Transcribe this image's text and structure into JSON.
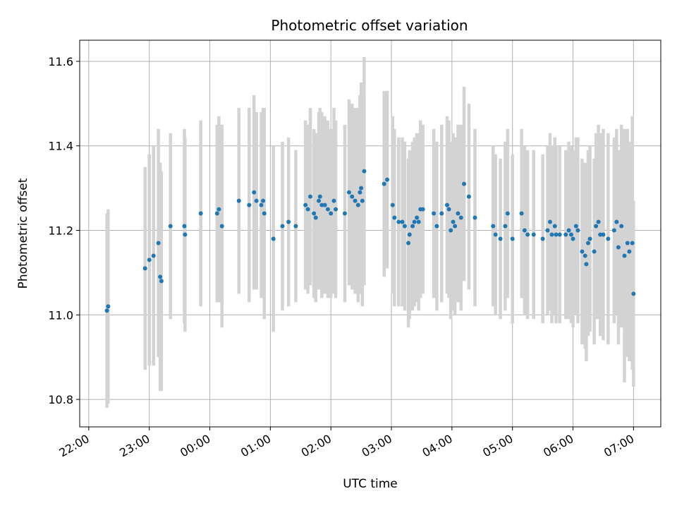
{
  "chart_data": {
    "type": "scatter",
    "title": "Photometric offset variation",
    "xlabel": "UTC time",
    "ylabel": "Photometric offset",
    "grid": true,
    "xlim": [
      -0.15,
      9.45
    ],
    "ylim": [
      10.735,
      11.65
    ],
    "x_ticks": [
      {
        "value": 0,
        "label": "22:00"
      },
      {
        "value": 1,
        "label": "23:00"
      },
      {
        "value": 2,
        "label": "00:00"
      },
      {
        "value": 3,
        "label": "01:00"
      },
      {
        "value": 4,
        "label": "02:00"
      },
      {
        "value": 5,
        "label": "03:00"
      },
      {
        "value": 6,
        "label": "04:00"
      },
      {
        "value": 7,
        "label": "05:00"
      },
      {
        "value": 8,
        "label": "06:00"
      },
      {
        "value": 9,
        "label": "07:00"
      }
    ],
    "y_ticks": [
      {
        "value": 10.8,
        "label": "10.8"
      },
      {
        "value": 11.0,
        "label": "11.0"
      },
      {
        "value": 11.2,
        "label": "11.2"
      },
      {
        "value": 11.4,
        "label": "11.4"
      },
      {
        "value": 11.6,
        "label": "11.6"
      }
    ],
    "point_color": "#1f77b4",
    "errorbar_color": "#d3d3d3",
    "points": [
      [
        0.3,
        11.01,
        0.23
      ],
      [
        0.32,
        11.02,
        0.23
      ],
      [
        0.93,
        11.11,
        0.24
      ],
      [
        1.0,
        11.13,
        0.25
      ],
      [
        1.07,
        11.14,
        0.26
      ],
      [
        1.15,
        11.17,
        0.27
      ],
      [
        1.18,
        11.09,
        0.27
      ],
      [
        1.2,
        11.08,
        0.26
      ],
      [
        1.35,
        11.21,
        0.22
      ],
      [
        1.58,
        11.21,
        0.23
      ],
      [
        1.59,
        11.19,
        0.23
      ],
      [
        1.85,
        11.24,
        0.22
      ],
      [
        2.12,
        11.24,
        0.21
      ],
      [
        2.15,
        11.25,
        0.22
      ],
      [
        2.2,
        11.21,
        0.24
      ],
      [
        2.48,
        11.27,
        0.22
      ],
      [
        2.65,
        11.26,
        0.23
      ],
      [
        2.73,
        11.29,
        0.23
      ],
      [
        2.77,
        11.27,
        0.21
      ],
      [
        2.85,
        11.26,
        0.22
      ],
      [
        2.88,
        11.27,
        0.22
      ],
      [
        2.9,
        11.24,
        0.25
      ],
      [
        3.05,
        11.18,
        0.22
      ],
      [
        3.2,
        11.21,
        0.2
      ],
      [
        3.3,
        11.22,
        0.2
      ],
      [
        3.42,
        11.21,
        0.18
      ],
      [
        3.58,
        11.26,
        0.2
      ],
      [
        3.62,
        11.25,
        0.2
      ],
      [
        3.66,
        11.28,
        0.21
      ],
      [
        3.72,
        11.24,
        0.2
      ],
      [
        3.75,
        11.23,
        0.2
      ],
      [
        3.8,
        11.27,
        0.21
      ],
      [
        3.82,
        11.28,
        0.21
      ],
      [
        3.85,
        11.26,
        0.22
      ],
      [
        3.9,
        11.26,
        0.21
      ],
      [
        3.95,
        11.25,
        0.21
      ],
      [
        4.0,
        11.24,
        0.2
      ],
      [
        4.05,
        11.27,
        0.22
      ],
      [
        4.08,
        11.25,
        0.21
      ],
      [
        4.23,
        11.24,
        0.21
      ],
      [
        4.3,
        11.29,
        0.22
      ],
      [
        4.35,
        11.28,
        0.22
      ],
      [
        4.4,
        11.27,
        0.22
      ],
      [
        4.45,
        11.26,
        0.23
      ],
      [
        4.48,
        11.29,
        0.23
      ],
      [
        4.5,
        11.3,
        0.25
      ],
      [
        4.52,
        11.27,
        0.25
      ],
      [
        4.55,
        11.34,
        0.27
      ],
      [
        4.88,
        11.31,
        0.22
      ],
      [
        4.93,
        11.32,
        0.21
      ],
      [
        5.02,
        11.26,
        0.21
      ],
      [
        5.05,
        11.23,
        0.21
      ],
      [
        5.12,
        11.22,
        0.2
      ],
      [
        5.18,
        11.22,
        0.2
      ],
      [
        5.22,
        11.21,
        0.2
      ],
      [
        5.28,
        11.17,
        0.2
      ],
      [
        5.3,
        11.19,
        0.2
      ],
      [
        5.35,
        11.21,
        0.2
      ],
      [
        5.38,
        11.22,
        0.2
      ],
      [
        5.42,
        11.23,
        0.2
      ],
      [
        5.45,
        11.22,
        0.21
      ],
      [
        5.48,
        11.25,
        0.21
      ],
      [
        5.52,
        11.25,
        0.2
      ],
      [
        5.7,
        11.24,
        0.2
      ],
      [
        5.75,
        11.21,
        0.2
      ],
      [
        5.83,
        11.24,
        0.21
      ],
      [
        5.92,
        11.26,
        0.21
      ],
      [
        5.95,
        11.25,
        0.21
      ],
      [
        5.98,
        11.2,
        0.21
      ],
      [
        6.02,
        11.22,
        0.21
      ],
      [
        6.05,
        11.21,
        0.21
      ],
      [
        6.1,
        11.24,
        0.21
      ],
      [
        6.15,
        11.23,
        0.22
      ],
      [
        6.2,
        11.31,
        0.23
      ],
      [
        6.28,
        11.28,
        0.22
      ],
      [
        6.38,
        11.23,
        0.21
      ],
      [
        6.68,
        11.21,
        0.19
      ],
      [
        6.72,
        11.19,
        0.19
      ],
      [
        6.8,
        11.18,
        0.19
      ],
      [
        6.88,
        11.21,
        0.2
      ],
      [
        6.92,
        11.24,
        0.2
      ],
      [
        7.0,
        11.18,
        0.2
      ],
      [
        7.15,
        11.24,
        0.2
      ],
      [
        7.2,
        11.2,
        0.2
      ],
      [
        7.25,
        11.19,
        0.2
      ],
      [
        7.35,
        11.19,
        0.2
      ],
      [
        7.5,
        11.18,
        0.2
      ],
      [
        7.58,
        11.2,
        0.2
      ],
      [
        7.62,
        11.22,
        0.21
      ],
      [
        7.65,
        11.19,
        0.21
      ],
      [
        7.7,
        11.21,
        0.21
      ],
      [
        7.72,
        11.19,
        0.21
      ],
      [
        7.78,
        11.19,
        0.21
      ],
      [
        7.88,
        11.19,
        0.2
      ],
      [
        7.93,
        11.2,
        0.21
      ],
      [
        7.97,
        11.19,
        0.21
      ],
      [
        8.0,
        11.18,
        0.21
      ],
      [
        8.05,
        11.21,
        0.21
      ],
      [
        8.08,
        11.2,
        0.22
      ],
      [
        8.15,
        11.15,
        0.22
      ],
      [
        8.2,
        11.14,
        0.22
      ],
      [
        8.22,
        11.12,
        0.23
      ],
      [
        8.25,
        11.17,
        0.22
      ],
      [
        8.28,
        11.18,
        0.22
      ],
      [
        8.35,
        11.15,
        0.22
      ],
      [
        8.38,
        11.21,
        0.22
      ],
      [
        8.42,
        11.22,
        0.23
      ],
      [
        8.45,
        11.19,
        0.24
      ],
      [
        8.5,
        11.19,
        0.25
      ],
      [
        8.58,
        11.18,
        0.25
      ],
      [
        8.68,
        11.2,
        0.22
      ],
      [
        8.72,
        11.22,
        0.22
      ],
      [
        8.75,
        11.16,
        0.23
      ],
      [
        8.8,
        11.21,
        0.24
      ],
      [
        8.85,
        11.14,
        0.3
      ],
      [
        8.9,
        11.17,
        0.27
      ],
      [
        8.93,
        11.15,
        0.26
      ],
      [
        8.98,
        11.17,
        0.3
      ],
      [
        9.0,
        11.05,
        0.22
      ]
    ]
  }
}
